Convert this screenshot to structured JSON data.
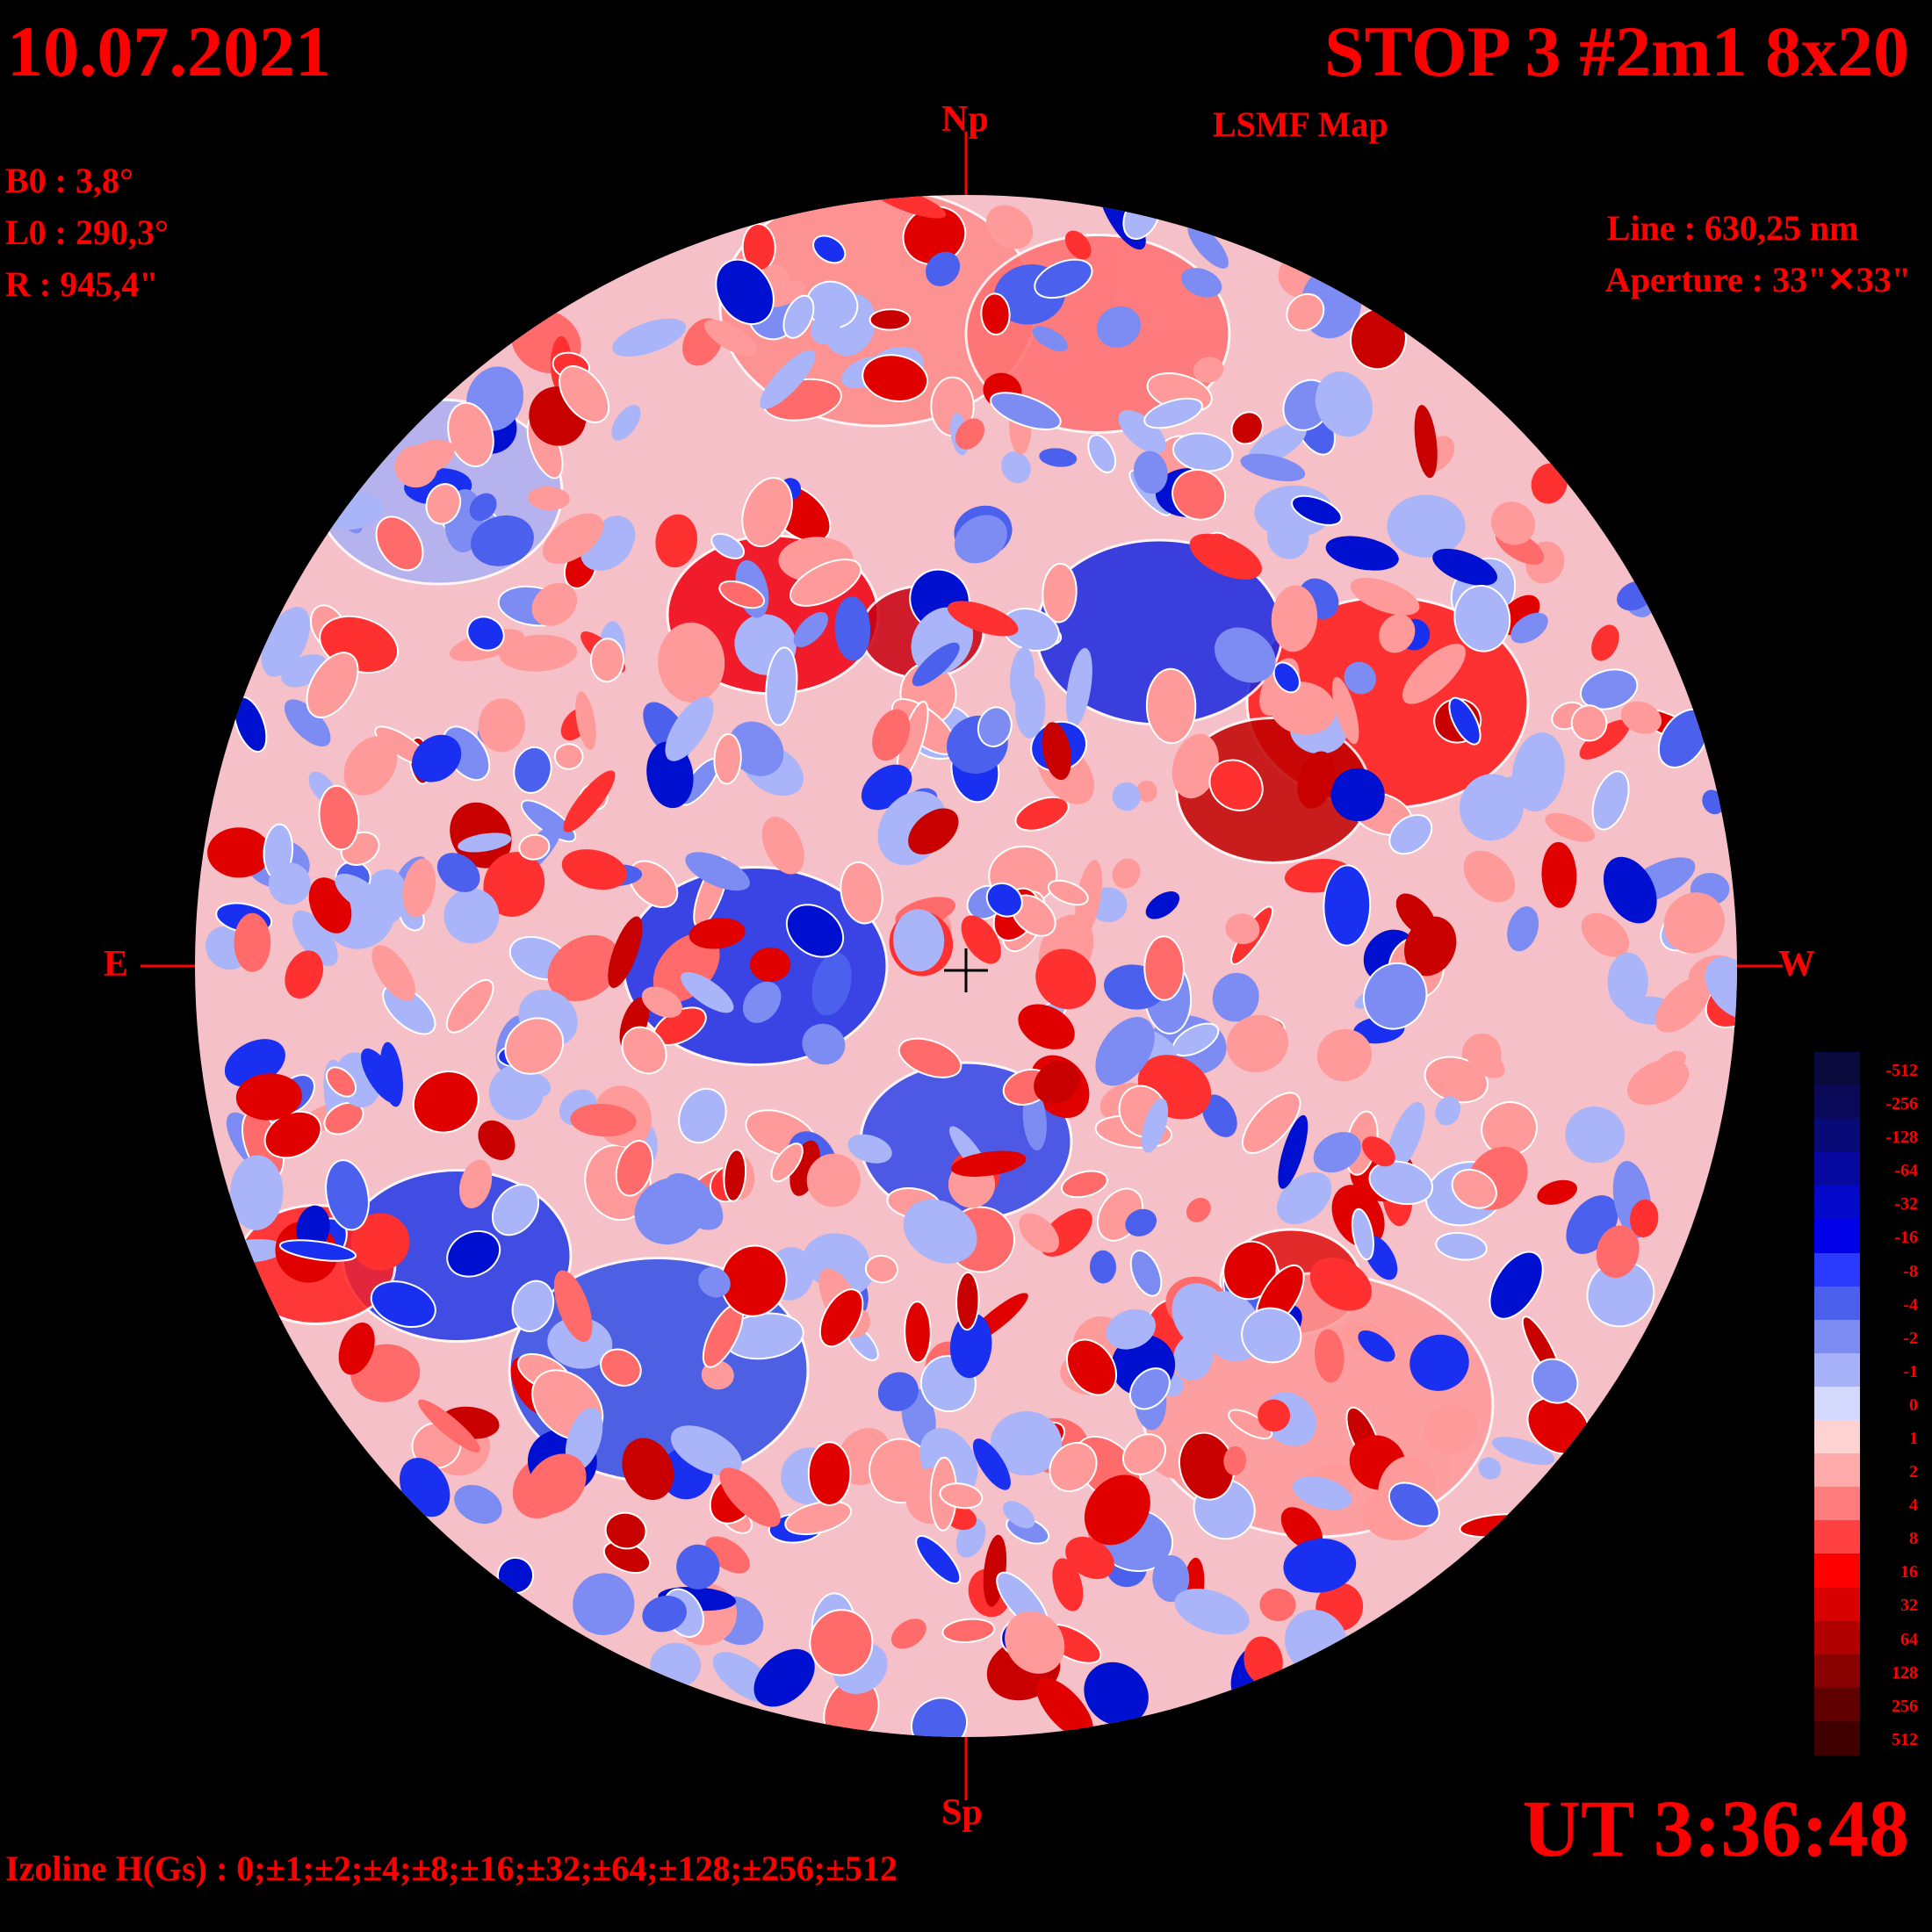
{
  "header": {
    "date": "10.07.2021",
    "title": "STOP 3 #2m1 8x20",
    "subtitle": "LSMF  Map"
  },
  "params": {
    "b0": "B0 : 3,8°",
    "l0": "L0 : 290,3°",
    "r": "R  : 945,4\""
  },
  "observation": {
    "line": "Line :  630,25 nm",
    "aperture": "Aperture : 33\"✕33\""
  },
  "directions": {
    "north": "Np",
    "south": "Sp",
    "east": "E",
    "west": "W"
  },
  "time": "UT 3:36:48",
  "izoline": "Izoline H(Gs) : 0;±1;±2;±4;±8;±16;±32;±64;±128;±256;±512",
  "legend": {
    "levels": [
      "-512",
      "-256",
      "-128",
      "-64",
      "-32",
      "-16",
      "-8",
      "-4",
      "-2",
      "-1",
      "0",
      "1",
      "2",
      "4",
      "8",
      "16",
      "32",
      "64",
      "128",
      "256",
      "512"
    ],
    "colors": [
      "#0b0a3c",
      "#0a0a58",
      "#080a78",
      "#0608a0",
      "#0408c8",
      "#0000e8",
      "#2a3aff",
      "#4c60ee",
      "#7c8cf2",
      "#a8b2f8",
      "#d4d8fc",
      "#ffd2d2",
      "#ffaaaa",
      "#ff7c7c",
      "#ff4040",
      "#ff0000",
      "#d80000",
      "#b00000",
      "#880000",
      "#600000",
      "#400000"
    ]
  },
  "colors": {
    "text": "#ff0000",
    "background": "#000000",
    "contour": "#ffffff"
  }
}
